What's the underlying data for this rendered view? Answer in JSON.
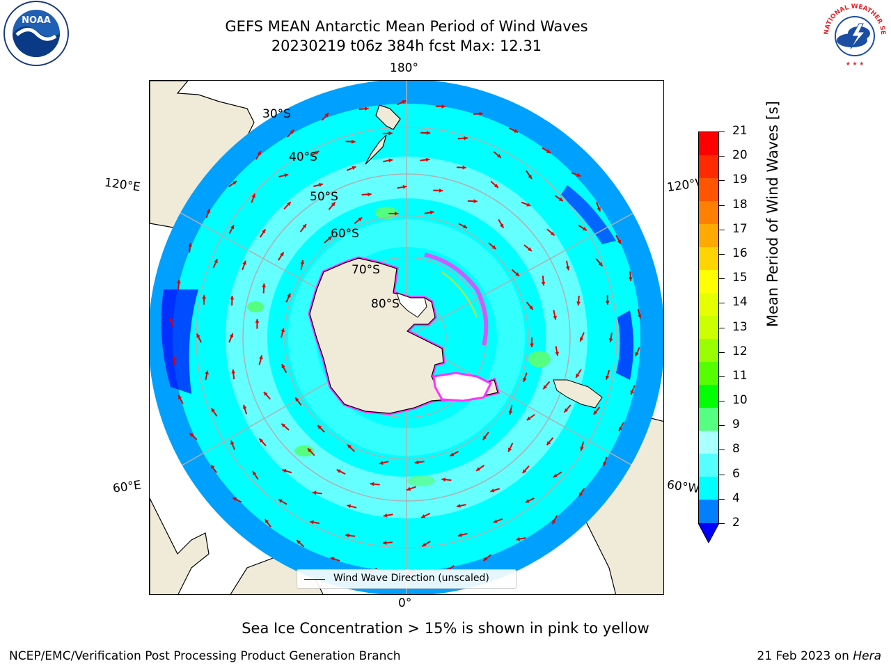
{
  "header": {
    "title_line1": "GEFS MEAN Antarctic Mean Period of Wind Waves",
    "title_line2": "20230219 t06z 384h fcst   Max: 12.31"
  },
  "logos": {
    "left": "noaa-logo",
    "right": "nws-logo",
    "left_text": "NOAA",
    "right_text": "NATIONAL WEATHER SERVICE"
  },
  "map": {
    "projection": "south-polar-stereographic",
    "longitude_labels": {
      "top": "180°",
      "bottom": "0°",
      "upper_left": "120°E",
      "upper_right": "120°W",
      "lower_left": "60°E",
      "lower_right": "60°W"
    },
    "latitude_labels": [
      "30°S",
      "40°S",
      "50°S",
      "60°S",
      "70°S",
      "80°S"
    ],
    "colors": {
      "land": "#efebd8",
      "ocean_base": "#00ffff",
      "sea_ice": "#ff33ff",
      "arrows": "#dd0000",
      "grid": "#b0b0b0"
    }
  },
  "legend": {
    "label": "Wind Wave Direction (unscaled)"
  },
  "colorbar": {
    "label": "Mean Period of Wind Waves [s]",
    "ticks": [
      "21",
      "20",
      "19",
      "18",
      "17",
      "16",
      "15",
      "14",
      "13",
      "12",
      "11",
      "10",
      "9",
      "8",
      "6",
      "4",
      "2"
    ],
    "colors_top_to_bottom": [
      "#ff0000",
      "#ff2a00",
      "#ff5500",
      "#ff8000",
      "#ffaa00",
      "#ffd500",
      "#ffff00",
      "#e6ff00",
      "#ccff00",
      "#99ff00",
      "#55ff00",
      "#00ff00",
      "#55ff80",
      "#aaffff",
      "#55ffff",
      "#00ffff",
      "#0080ff"
    ],
    "under_color": "#0000ff"
  },
  "subtitle": "Sea Ice Concentration > 15% is shown in pink to yellow",
  "footer": {
    "left": "NCEP/EMC/Verification Post Processing Product Generation Branch",
    "right_prefix": "21 Feb 2023 on ",
    "right_italic": "Hera"
  }
}
